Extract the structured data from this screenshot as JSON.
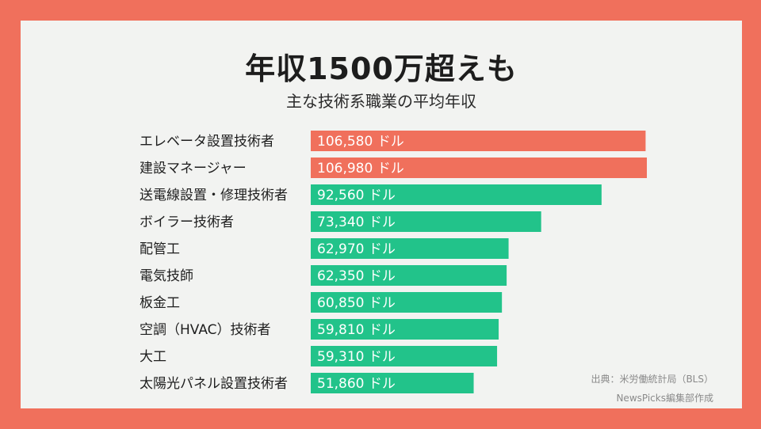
{
  "chart_data": {
    "type": "bar",
    "orientation": "horizontal",
    "title": "年収1500万超えも",
    "subtitle": "主な技術系職業の平均年収",
    "categories": [
      "エレベータ設置技術者",
      "建設マネージャー",
      "送電線設置・修理技術者",
      "ボイラー技術者",
      "配管工",
      "電気技師",
      "板金工",
      "空調（HVAC）技術者",
      "大工",
      "太陽光パネル設置技術者"
    ],
    "values": [
      106580,
      106980,
      92560,
      73340,
      62970,
      62350,
      60850,
      59810,
      59310,
      51860
    ],
    "value_labels": [
      "106,580 ドル",
      "106,980 ドル",
      "92,560 ドル",
      "73,340 ドル",
      "62,970 ドル",
      "62,350 ドル",
      "60,850 ドル",
      "59,810 ドル",
      "59,310 ドル",
      "51,860 ドル"
    ],
    "bar_colors": [
      "#f0705c",
      "#f0705c",
      "#22c38a",
      "#22c38a",
      "#22c38a",
      "#22c38a",
      "#22c38a",
      "#22c38a",
      "#22c38a",
      "#22c38a"
    ],
    "xlim": [
      0,
      106980
    ]
  },
  "footer": {
    "source": "出典：米労働統計局（BLS）",
    "credit": "NewsPicks編集部作成"
  }
}
